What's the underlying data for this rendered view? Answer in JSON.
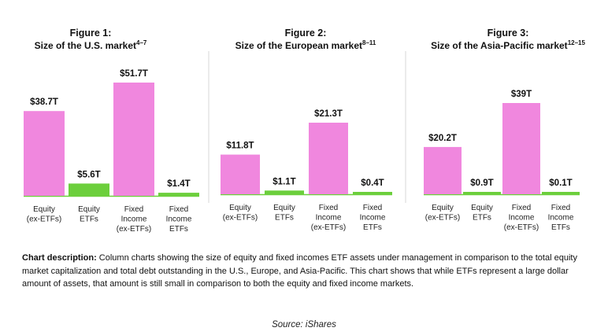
{
  "chart_data": [
    {
      "type": "bar",
      "figure_label": "Figure 1:",
      "title": "Size of the U.S. market",
      "title_sup": "4–7",
      "categories": [
        [
          "Equity",
          "(ex-ETFs)"
        ],
        [
          "Equity",
          "ETFs"
        ],
        [
          "Fixed",
          "Income",
          "(ex-ETFs)"
        ],
        [
          "Fixed",
          "Income",
          "ETFs"
        ]
      ],
      "values": [
        38.7,
        5.6,
        51.7,
        1.4
      ],
      "labels": [
        "$38.7T",
        "$5.6T",
        "$51.7T",
        "$1.4T"
      ],
      "colors": [
        "#f087de",
        "#6ccf3c",
        "#f087de",
        "#6ccf3c"
      ],
      "unit": "T (USD trillions)",
      "ylim": [
        0,
        51.7
      ]
    },
    {
      "type": "bar",
      "figure_label": "Figure 2:",
      "title": "Size of the European market",
      "title_sup": "8–11",
      "categories": [
        [
          "Equity",
          "(ex-ETFs)"
        ],
        [
          "Equity",
          "ETFs"
        ],
        [
          "Fixed",
          "Income",
          "(ex-ETFs)"
        ],
        [
          "Fixed",
          "Income",
          "ETFs"
        ]
      ],
      "values": [
        11.8,
        1.1,
        21.3,
        0.4
      ],
      "labels": [
        "$11.8T",
        "$1.1T",
        "$21.3T",
        "$0.4T"
      ],
      "colors": [
        "#f087de",
        "#6ccf3c",
        "#f087de",
        "#6ccf3c"
      ],
      "unit": "T (USD trillions)",
      "ylim": [
        0,
        21.3
      ]
    },
    {
      "type": "bar",
      "figure_label": "Figure 3:",
      "title": "Size of the Asia-Pacific market",
      "title_sup": "12–15",
      "categories": [
        [
          "Equity",
          "(ex-ETFs)"
        ],
        [
          "Equity",
          "ETFs"
        ],
        [
          "Fixed",
          "Income",
          "(ex-ETFs)"
        ],
        [
          "Fixed",
          "Income",
          "ETFs"
        ]
      ],
      "values": [
        20.2,
        0.9,
        39,
        0.1
      ],
      "labels": [
        "$20.2T",
        "$0.9T",
        "$39T",
        "$0.1T"
      ],
      "colors": [
        "#f087de",
        "#6ccf3c",
        "#f087de",
        "#6ccf3c"
      ],
      "unit": "T (USD trillions)",
      "ylim": [
        0,
        39
      ]
    }
  ],
  "description": {
    "label": "Chart description:",
    "text": " Column charts showing the size of equity and fixed incomes ETF assets under management in comparison to the total equity market capitalization and total debt outstanding in the U.S., Europe, and Asia-Pacific. This chart shows that while ETFs represent a large dollar amount of assets, that amount is still small in comparison to both the equity and fixed income markets."
  },
  "source": "Source: iShares"
}
